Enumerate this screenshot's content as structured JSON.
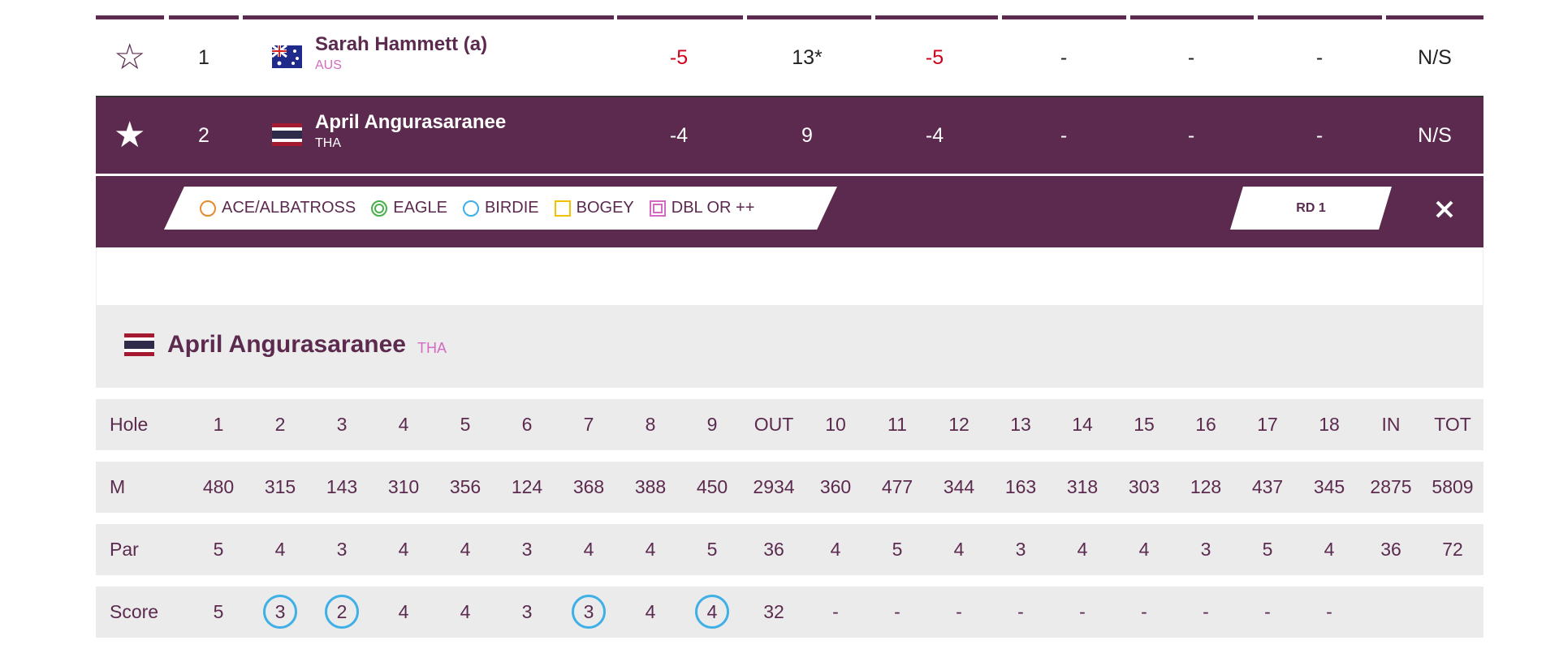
{
  "leaderboard": {
    "rows": [
      {
        "position": "1",
        "name": "Sarah Hammett (a)",
        "country": "AUS",
        "selected": false,
        "scores": [
          "-5",
          "13*",
          "-5",
          "-",
          "-",
          "-",
          "N/S"
        ]
      },
      {
        "position": "2",
        "name": "April Angurasaranee",
        "country": "THA",
        "selected": true,
        "scores": [
          "-4",
          "9",
          "-4",
          "-",
          "-",
          "-",
          "N/S"
        ]
      }
    ]
  },
  "legend": {
    "items": [
      "ACE/ALBATROSS",
      "EAGLE",
      "BIRDIE",
      "BOGEY",
      "DBL OR ++"
    ],
    "round": "RD 1"
  },
  "scorecard": {
    "player": "April Angurasaranee",
    "country": "THA",
    "rows": [
      {
        "label": "Hole",
        "cells": [
          "1",
          "2",
          "3",
          "4",
          "5",
          "6",
          "7",
          "8",
          "9",
          "OUT",
          "10",
          "11",
          "12",
          "13",
          "14",
          "15",
          "16",
          "17",
          "18",
          "IN",
          "TOT"
        ]
      },
      {
        "label": "M",
        "cells": [
          "480",
          "315",
          "143",
          "310",
          "356",
          "124",
          "368",
          "388",
          "450",
          "2934",
          "360",
          "477",
          "344",
          "163",
          "318",
          "303",
          "128",
          "437",
          "345",
          "2875",
          "5809"
        ]
      },
      {
        "label": "Par",
        "cells": [
          "5",
          "4",
          "3",
          "4",
          "4",
          "3",
          "4",
          "4",
          "5",
          "36",
          "4",
          "5",
          "4",
          "3",
          "4",
          "4",
          "3",
          "5",
          "4",
          "36",
          "72"
        ]
      },
      {
        "label": "Score",
        "cells": [
          "5",
          "3",
          "2",
          "4",
          "4",
          "3",
          "3",
          "4",
          "4",
          "32",
          "-",
          "-",
          "-",
          "-",
          "-",
          "-",
          "-",
          "-",
          "-"
        ]
      }
    ]
  }
}
